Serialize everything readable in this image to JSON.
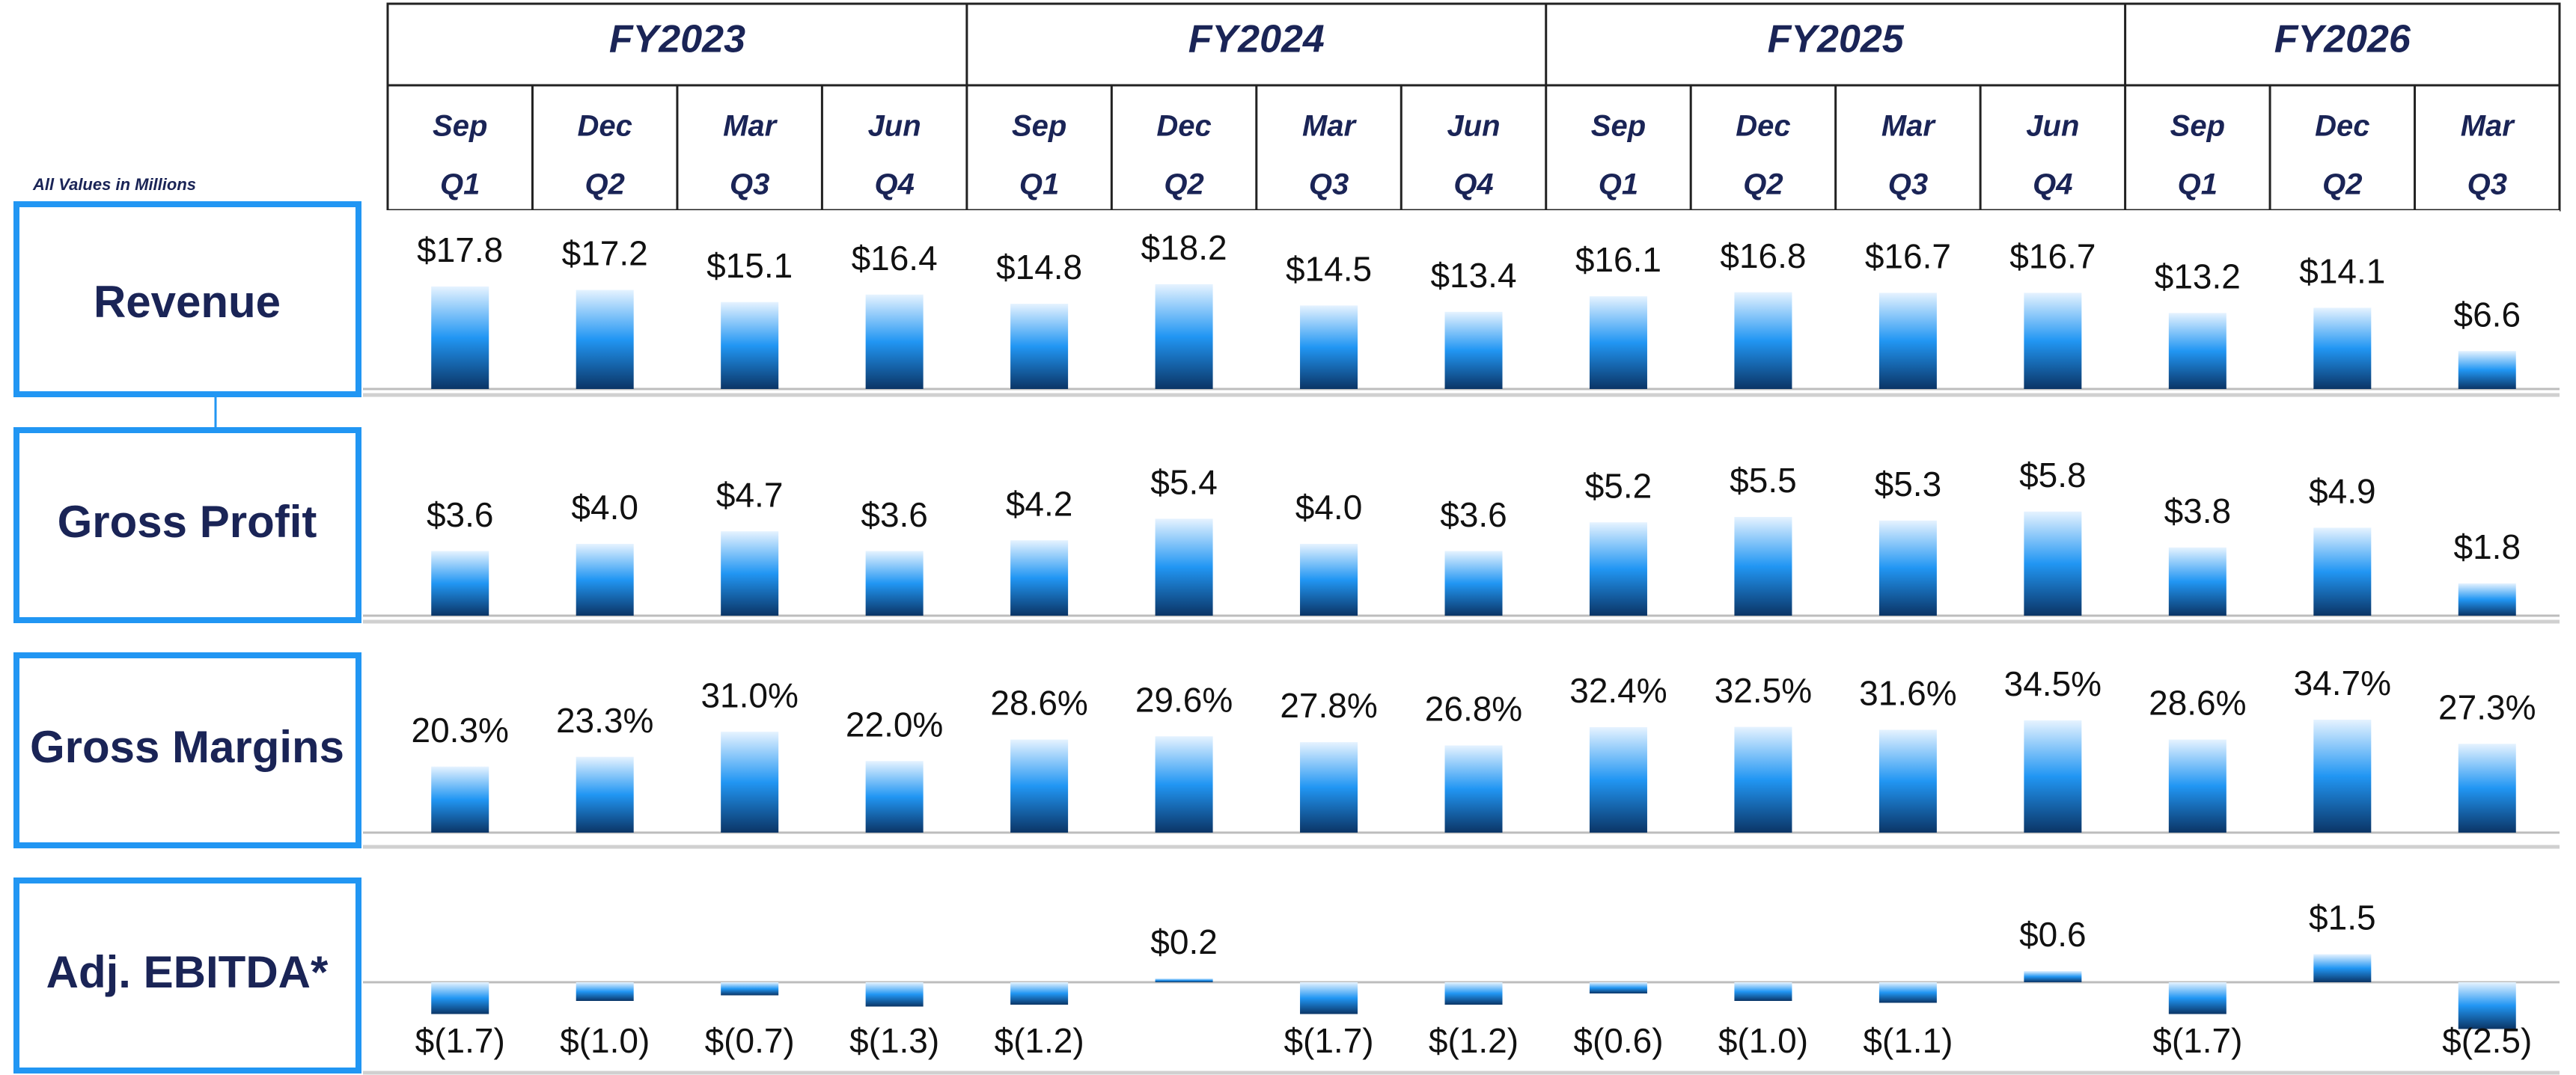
{
  "header": {
    "note": "All Values in Millions",
    "years": [
      "FY2023",
      "FY2024",
      "FY2025",
      "FY2026"
    ],
    "months": [
      "Sep",
      "Dec",
      "Mar",
      "Jun",
      "Sep",
      "Dec",
      "Mar",
      "Jun",
      "Sep",
      "Dec",
      "Mar",
      "Jun",
      "Sep",
      "Dec",
      "Mar"
    ],
    "quarters": [
      "Q1",
      "Q2",
      "Q3",
      "Q4",
      "Q1",
      "Q2",
      "Q3",
      "Q4",
      "Q1",
      "Q2",
      "Q3",
      "Q4",
      "Q1",
      "Q2",
      "Q3"
    ]
  },
  "chart_data": [
    {
      "type": "bar",
      "title": "Revenue",
      "color": "#2196f3",
      "values": [
        17.8,
        17.2,
        15.1,
        16.4,
        14.8,
        18.2,
        14.5,
        13.4,
        16.1,
        16.8,
        16.7,
        16.7,
        13.2,
        14.1,
        6.6
      ],
      "value_labels": [
        "$17.8",
        "$17.2",
        "$15.1",
        "$16.4",
        "$14.8",
        "$18.2",
        "$14.5",
        "$13.4",
        "$16.1",
        "$16.8",
        "$16.7",
        "$16.7",
        "$13.2",
        "$14.1",
        "$6.6"
      ]
    },
    {
      "type": "bar",
      "title": "Gross Profit",
      "color": "#2196f3",
      "values": [
        3.6,
        4.0,
        4.7,
        3.6,
        4.2,
        5.4,
        4.0,
        3.6,
        5.2,
        5.5,
        5.3,
        5.8,
        3.8,
        4.9,
        1.8
      ],
      "value_labels": [
        "$3.6",
        "$4.0",
        "$4.7",
        "$3.6",
        "$4.2",
        "$5.4",
        "$4.0",
        "$3.6",
        "$5.2",
        "$5.5",
        "$5.3",
        "$5.8",
        "$3.8",
        "$4.9",
        "$1.8"
      ]
    },
    {
      "type": "bar",
      "title": "Gross Margins",
      "color": "#2196f3",
      "values": [
        20.3,
        23.3,
        31.0,
        22.0,
        28.6,
        29.6,
        27.8,
        26.8,
        32.4,
        32.5,
        31.6,
        34.5,
        28.6,
        34.7,
        27.3
      ],
      "value_labels": [
        "20.3%",
        "23.3%",
        "31.0%",
        "22.0%",
        "28.6%",
        "29.6%",
        "27.8%",
        "26.8%",
        "32.4%",
        "32.5%",
        "31.6%",
        "34.5%",
        "28.6%",
        "34.7%",
        "27.3%"
      ]
    },
    {
      "type": "bar",
      "title": "Adj. EBITDA*",
      "color": "#2196f3",
      "values": [
        -1.7,
        -1.0,
        -0.7,
        -1.3,
        -1.2,
        0.2,
        -1.7,
        -1.2,
        -0.6,
        -1.0,
        -1.1,
        0.6,
        -1.7,
        1.5,
        -2.5
      ],
      "value_labels": [
        "$(1.7)",
        "$(1.0)",
        "$(0.7)",
        "$(1.3)",
        "$(1.2)",
        "$0.2",
        "$(1.7)",
        "$(1.2)",
        "$(0.6)",
        "$(1.0)",
        "$(1.1)",
        "$0.6",
        "$(1.7)",
        "$1.5",
        "$(2.5)"
      ]
    }
  ]
}
